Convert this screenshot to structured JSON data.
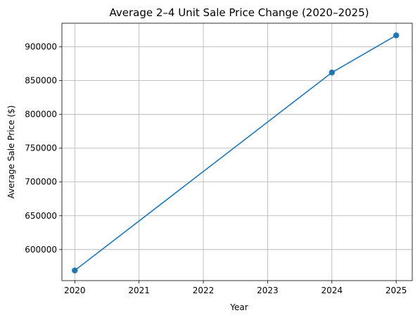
{
  "chart_data": {
    "type": "line",
    "title": "Average 2–4 Unit Sale Price Change (2020–2025)",
    "xlabel": "Year",
    "ylabel": "Average Sale Price ($)",
    "xlim": [
      2019.8,
      2025.25
    ],
    "ylim": [
      554000,
      935000
    ],
    "x_ticks": [
      "2020",
      "2021",
      "2022",
      "2023",
      "2024",
      "2025"
    ],
    "y_ticks": [
      "600000",
      "650000",
      "700000",
      "750000",
      "800000",
      "850000",
      "900000"
    ],
    "grid": true,
    "series": [
      {
        "color": "#1f77b4",
        "points": [
          {
            "x": 2020,
            "y": 569000
          },
          {
            "x": 2024,
            "y": 862000
          },
          {
            "x": 2025,
            "y": 917000
          }
        ]
      }
    ]
  }
}
